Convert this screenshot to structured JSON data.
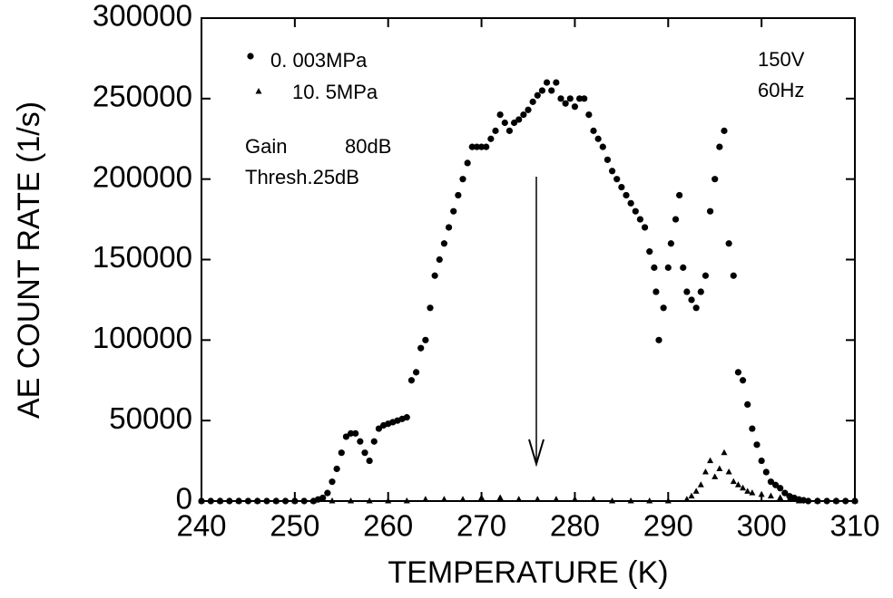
{
  "chart_data": {
    "type": "scatter",
    "x_label": "TEMPERATURE (K)",
    "y_label": "AE COUNT RATE (1/s)",
    "xlim": [
      240,
      310
    ],
    "ylim": [
      0,
      300000
    ],
    "xticks": [
      240,
      250,
      260,
      270,
      280,
      290,
      300,
      310
    ],
    "yticks": [
      0,
      50000,
      100000,
      150000,
      200000,
      250000,
      300000
    ],
    "annotations": [
      "Gain",
      "80dB",
      "Thresh.25dB",
      "150V",
      "60Hz"
    ],
    "series": [
      {
        "name": "0. 003MPa",
        "color": "#000000",
        "marker": "circle",
        "x": [
          240,
          241,
          242,
          243,
          244,
          245,
          246,
          247,
          248,
          249,
          250,
          251,
          252,
          252.5,
          253,
          253.5,
          254,
          254.5,
          255,
          255.5,
          256,
          256.5,
          257,
          257.5,
          258,
          258.5,
          259,
          259.5,
          260,
          260.5,
          261,
          261.5,
          262,
          262.5,
          263,
          263.5,
          264,
          264.5,
          265,
          265.5,
          266,
          266.5,
          267,
          267.5,
          268,
          268.5,
          269,
          269.5,
          270,
          270.5,
          271,
          271.5,
          272,
          272.5,
          273,
          273.5,
          274,
          274.5,
          275,
          275.5,
          276,
          276.5,
          277,
          277.5,
          278,
          278.5,
          279,
          279.5,
          280,
          280.5,
          281,
          281.5,
          282,
          282.5,
          283,
          283.5,
          284,
          284.5,
          285,
          285.5,
          286,
          286.5,
          287,
          287.5,
          288,
          288.5,
          288.7,
          289,
          289.5,
          290,
          290.3,
          290.8,
          291.2,
          291.6,
          292,
          292.5,
          293,
          293.5,
          294,
          294.5,
          295,
          295.5,
          296,
          296.5,
          297,
          297.5,
          298,
          298.5,
          299,
          299.5,
          300,
          300.5,
          301,
          301.5,
          302,
          302.5,
          303,
          303.5,
          304,
          304.5,
          305,
          306,
          307,
          308,
          309,
          310
        ],
        "values": [
          0,
          0,
          0,
          0,
          0,
          0,
          0,
          0,
          0,
          0,
          0,
          0,
          0,
          1000,
          2000,
          5000,
          12000,
          20000,
          30000,
          40000,
          42000,
          42000,
          37000,
          30000,
          25000,
          37000,
          45000,
          47000,
          48000,
          49000,
          50000,
          51000,
          52000,
          75000,
          80000,
          95000,
          100000,
          120000,
          140000,
          150000,
          160000,
          170000,
          180000,
          190000,
          200000,
          210000,
          220000,
          220000,
          220000,
          220000,
          225000,
          230000,
          240000,
          235000,
          230000,
          235000,
          237000,
          240000,
          243000,
          248000,
          252000,
          255000,
          260000,
          255000,
          260000,
          250000,
          247000,
          250000,
          245000,
          250000,
          250000,
          240000,
          230000,
          225000,
          220000,
          212000,
          205000,
          200000,
          195000,
          190000,
          185000,
          180000,
          175000,
          170000,
          155000,
          145000,
          130000,
          100000,
          120000,
          145000,
          160000,
          175000,
          190000,
          145000,
          130000,
          125000,
          120000,
          130000,
          140000,
          180000,
          200000,
          220000,
          230000,
          160000,
          140000,
          80000,
          75000,
          60000,
          45000,
          35000,
          25000,
          18000,
          12000,
          10000,
          8000,
          5000,
          3000,
          2000,
          1000,
          500,
          0,
          0,
          0,
          0,
          0,
          0
        ]
      },
      {
        "name": "10. 5MPa",
        "color": "#000000",
        "marker": "triangle",
        "x": [
          240,
          242,
          244,
          246,
          248,
          250,
          252,
          254,
          256,
          258,
          260,
          262,
          264,
          266,
          268,
          270,
          272,
          274,
          276,
          278,
          280,
          282,
          284,
          286,
          288,
          290,
          292,
          292.5,
          293,
          293.5,
          294,
          294.5,
          295,
          295.5,
          296,
          296.5,
          297,
          297.5,
          298,
          298.5,
          299,
          300,
          301,
          302,
          303,
          304,
          306,
          308,
          310
        ],
        "values": [
          0,
          0,
          0,
          0,
          0,
          0,
          0,
          0,
          0,
          0,
          0,
          0,
          1000,
          1000,
          1000,
          2000,
          2000,
          1000,
          1000,
          1000,
          1000,
          1000,
          0,
          0,
          0,
          0,
          1000,
          3000,
          6000,
          10000,
          18000,
          25000,
          15000,
          20000,
          30000,
          18000,
          12000,
          10000,
          8000,
          6000,
          5000,
          4000,
          3000,
          2000,
          1000,
          0,
          0,
          0,
          0
        ]
      }
    ]
  }
}
